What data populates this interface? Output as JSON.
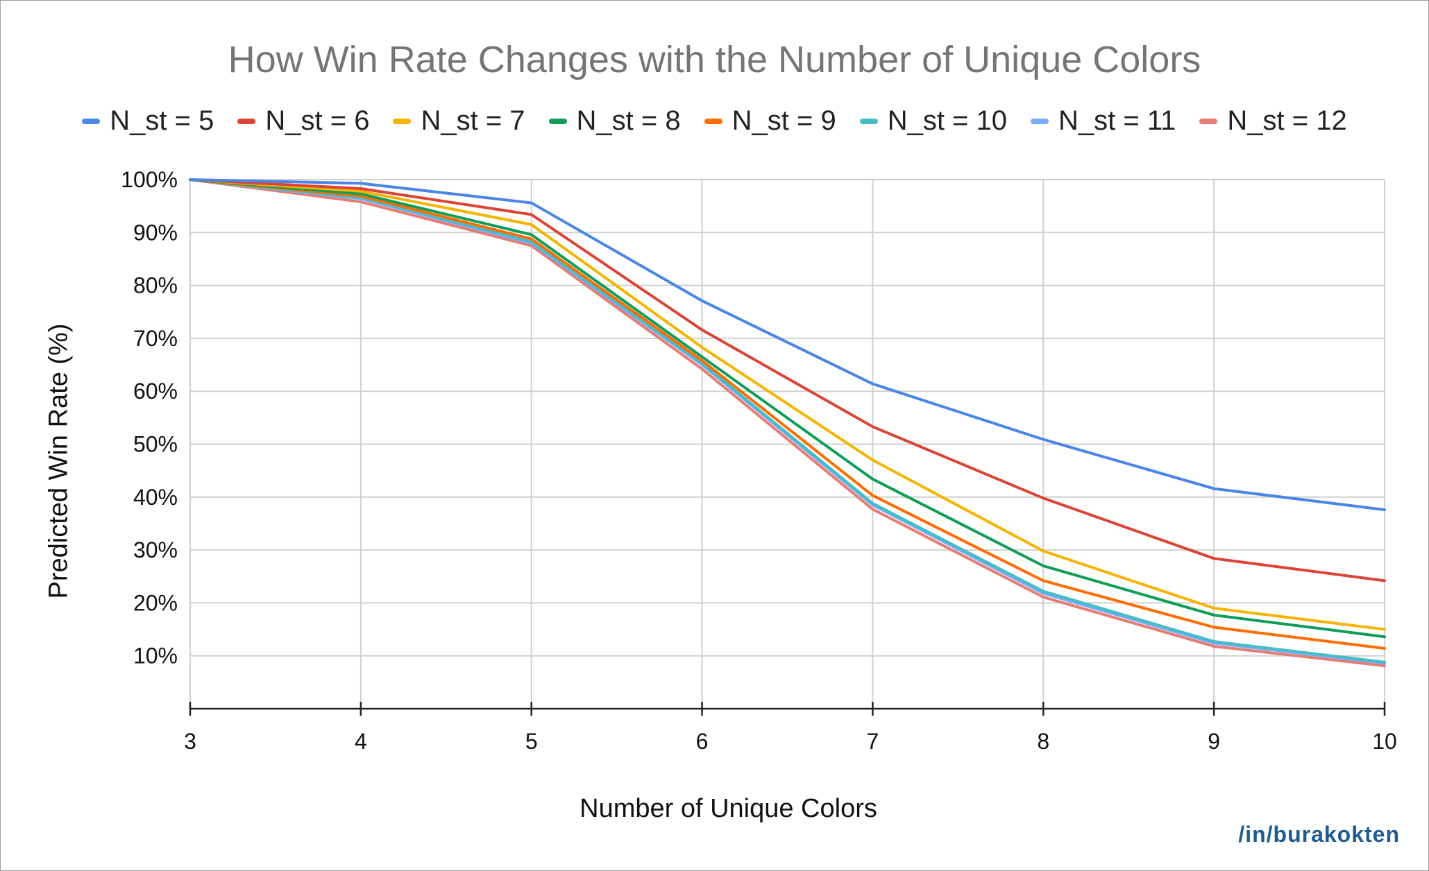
{
  "chart_data": {
    "type": "line",
    "title": "How Win Rate Changes with the Number of Unique Colors",
    "xlabel": "Number of Unique Colors",
    "ylabel": "Predicted Win Rate (%)",
    "x": [
      3,
      4,
      5,
      6,
      7,
      8,
      9,
      10
    ],
    "xlim": [
      3,
      10
    ],
    "ylim": [
      0,
      100
    ],
    "yticks": [
      10,
      20,
      30,
      40,
      50,
      60,
      70,
      80,
      90,
      100
    ],
    "ytick_labels": [
      "10%",
      "20%",
      "30%",
      "40%",
      "50%",
      "60%",
      "70%",
      "80%",
      "90%",
      "100%"
    ],
    "xtick_labels": [
      "3",
      "4",
      "5",
      "6",
      "7",
      "8",
      "9",
      "10"
    ],
    "grid": true,
    "legend_position": "top",
    "series": [
      {
        "name": "N_st = 5",
        "color": "#4a86e8",
        "values": [
          100,
          99.3,
          95.6,
          77.1,
          61.4,
          50.9,
          41.6,
          37.6
        ]
      },
      {
        "name": "N_st = 6",
        "color": "#db4437",
        "values": [
          100,
          98.3,
          93.4,
          71.6,
          53.3,
          39.8,
          28.4,
          24.2
        ]
      },
      {
        "name": "N_st = 7",
        "color": "#f4b400",
        "values": [
          100,
          97.8,
          91.5,
          68.3,
          47.0,
          29.8,
          19.0,
          15.0
        ]
      },
      {
        "name": "N_st = 8",
        "color": "#0f9d58",
        "values": [
          100,
          97.3,
          89.6,
          66.5,
          43.4,
          27.0,
          17.7,
          13.6
        ]
      },
      {
        "name": "N_st = 9",
        "color": "#ff6d01",
        "values": [
          100,
          96.9,
          88.8,
          65.8,
          40.3,
          24.2,
          15.4,
          11.4
        ]
      },
      {
        "name": "N_st = 10",
        "color": "#46bdc6",
        "values": [
          100,
          96.6,
          88.3,
          65.3,
          38.8,
          22.2,
          12.7,
          8.8
        ]
      },
      {
        "name": "N_st = 11",
        "color": "#7baaf7",
        "values": [
          100,
          96.4,
          88.0,
          65.0,
          38.5,
          21.8,
          12.4,
          8.6
        ]
      },
      {
        "name": "N_st = 12",
        "color": "#e67c73",
        "values": [
          100,
          95.8,
          87.5,
          64.2,
          37.7,
          21.1,
          11.8,
          8.1
        ]
      }
    ]
  },
  "watermark": "/in/burakokten"
}
